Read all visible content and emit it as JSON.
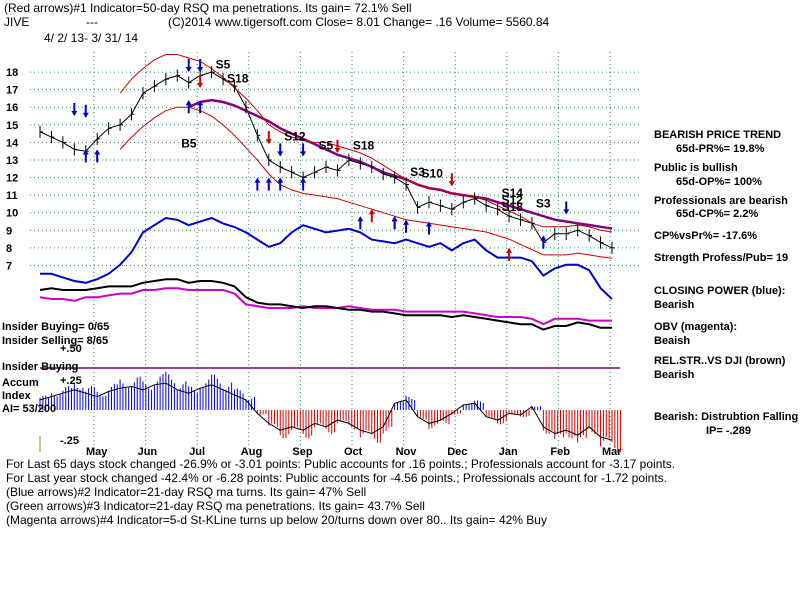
{
  "header": {
    "line1": "(Red arrows)#1 Indicator=50-day RSQ ma penetrations. Its gain= 72.1% Sell",
    "ticker": "JIVE",
    "dashes": "---",
    "line2": "(C)2014 www.tigersoft.com     Close=  8.01  Change= .16 Volume= 5560.84",
    "date_range": "4/ 2/ 13-  3/ 31/ 14"
  },
  "chart_data": {
    "type": "line",
    "price_axis": {
      "ticks": [
        "18",
        "17",
        "16",
        "15",
        "14",
        "13",
        "12",
        "11",
        "10",
        "9",
        "8",
        "7"
      ],
      "range": [
        6.4,
        18.8
      ]
    },
    "months": [
      "May",
      "Jun",
      "Jul",
      "Aug",
      "Sep",
      "Oct",
      "Nov",
      "Dec",
      "Jan",
      "Feb",
      "Mar"
    ],
    "series": [
      {
        "key": "price",
        "color": "#000000",
        "values": [
          14.6,
          14.3,
          14.0,
          13.6,
          13.5,
          14.2,
          14.8,
          15.0,
          15.6,
          16.8,
          17.2,
          17.6,
          17.8,
          17.4,
          17.8,
          18.0,
          17.6,
          17.2,
          16.0,
          14.4,
          13.0,
          12.6,
          12.3,
          12.0,
          12.3,
          12.6,
          12.4,
          13.0,
          12.8,
          12.6,
          12.2,
          12.0,
          11.6,
          10.3,
          10.6,
          10.4,
          10.2,
          10.6,
          10.8,
          10.4,
          10.2,
          9.8,
          9.6,
          9.4,
          8.3,
          8.8,
          8.8,
          9.0,
          8.7,
          8.3,
          8.0
        ]
      },
      {
        "key": "ma_50",
        "color": "#800080",
        "values": [
          null,
          null,
          null,
          null,
          null,
          null,
          null,
          null,
          null,
          null,
          null,
          null,
          null,
          16.0,
          16.3,
          16.4,
          16.3,
          16.1,
          15.8,
          15.5,
          15.2,
          14.8,
          14.5,
          14.2,
          13.9,
          13.6,
          13.3,
          13.1,
          12.9,
          12.6,
          12.3,
          12.1,
          11.9,
          11.6,
          11.4,
          11.3,
          11.1,
          11.0,
          10.9,
          10.8,
          10.6,
          10.4,
          10.2,
          10.0,
          9.8,
          9.6,
          9.5,
          9.4,
          9.3,
          9.2,
          9.1
        ]
      },
      {
        "key": "band_upper",
        "color": "#cc0000",
        "values": [
          null,
          null,
          null,
          null,
          null,
          null,
          null,
          16.8,
          17.6,
          18.2,
          18.7,
          19.0,
          19.0,
          18.8,
          18.6,
          18.2,
          17.7,
          17.1,
          16.5,
          15.8,
          15.0,
          14.6,
          14.3,
          14.1,
          14.0,
          14.0,
          13.8,
          13.6,
          13.4,
          13.1,
          12.7,
          12.3,
          11.9,
          11.6,
          11.4,
          11.3,
          11.1,
          11.0,
          10.9,
          10.7,
          10.4,
          10.1,
          9.8,
          9.4,
          9.2,
          9.2,
          9.2,
          9.3,
          9.2,
          9.0,
          8.9
        ]
      },
      {
        "key": "band_lower",
        "color": "#cc0000",
        "values": [
          null,
          null,
          null,
          null,
          null,
          null,
          null,
          13.6,
          14.3,
          14.9,
          15.4,
          15.8,
          16.0,
          16.0,
          15.8,
          15.5,
          15.0,
          14.4,
          13.7,
          13.0,
          12.2,
          11.6,
          11.3,
          11.1,
          11.0,
          10.9,
          10.8,
          10.6,
          10.4,
          10.2,
          10.0,
          9.8,
          9.6,
          9.5,
          9.4,
          9.3,
          9.2,
          9.1,
          9.0,
          8.9,
          8.7,
          8.5,
          8.2,
          7.9,
          7.6,
          7.6,
          7.6,
          7.7,
          7.6,
          7.5,
          7.4
        ]
      },
      {
        "key": "closing_power",
        "color": "#0000cc",
        "values": [
          5.9,
          5.9,
          5.7,
          5.5,
          5.4,
          5.6,
          5.9,
          6.4,
          7.1,
          8.2,
          8.6,
          9.0,
          8.9,
          8.6,
          8.8,
          9.0,
          8.7,
          8.5,
          8.2,
          7.8,
          7.4,
          7.6,
          8.2,
          8.6,
          8.4,
          8.2,
          8.3,
          8.4,
          8.2,
          7.8,
          7.7,
          7.6,
          7.8,
          7.6,
          7.4,
          7.6,
          7.2,
          7.6,
          7.8,
          7.2,
          6.8,
          6.8,
          6.8,
          6.6,
          5.8,
          6.2,
          6.4,
          6.4,
          6.1,
          5.1,
          4.5
        ]
      },
      {
        "key": "obv",
        "color": "#cc00cc",
        "values": [
          4.6,
          4.5,
          4.5,
          4.4,
          4.6,
          4.6,
          4.7,
          4.8,
          4.8,
          5.0,
          5.0,
          5.1,
          5.1,
          5.0,
          5.0,
          5.0,
          5.0,
          4.8,
          4.2,
          4.1,
          4.0,
          4.0,
          4.0,
          4.1,
          4.0,
          4.0,
          4.0,
          4.1,
          4.0,
          3.9,
          3.9,
          3.9,
          3.8,
          3.8,
          3.8,
          3.8,
          3.8,
          3.8,
          3.7,
          3.6,
          3.5,
          3.5,
          3.5,
          3.4,
          3.1,
          3.4,
          3.4,
          3.4,
          3.3,
          3.3,
          3.3
        ]
      },
      {
        "key": "rel_str_dji",
        "color": "#000000",
        "values": [
          5.0,
          5.1,
          5.0,
          5.0,
          5.0,
          5.1,
          5.2,
          5.2,
          5.2,
          5.4,
          5.5,
          5.6,
          5.6,
          5.4,
          5.5,
          5.5,
          5.4,
          5.2,
          4.6,
          4.3,
          4.2,
          4.2,
          4.1,
          4.0,
          4.1,
          4.1,
          4.0,
          3.9,
          3.9,
          3.8,
          3.8,
          3.7,
          3.6,
          3.6,
          3.6,
          3.6,
          3.5,
          3.6,
          3.5,
          3.4,
          3.3,
          3.2,
          3.1,
          3.1,
          2.8,
          3.0,
          3.0,
          3.2,
          3.1,
          2.9,
          2.9
        ]
      }
    ],
    "accum": {
      "label_pos": "+.50",
      "label_mid": "+.25",
      "label_neg": "-.25",
      "values": [
        0.06,
        0.08,
        0.1,
        0.12,
        0.1,
        0.08,
        0.11,
        0.13,
        0.14,
        0.12,
        0.15,
        0.16,
        0.12,
        0.1,
        0.13,
        0.15,
        0.12,
        0.09,
        0.06,
        -0.02,
        -0.08,
        -0.12,
        -0.1,
        -0.12,
        -0.08,
        -0.1,
        -0.06,
        -0.08,
        -0.12,
        -0.14,
        -0.1,
        0.04,
        0.06,
        -0.04,
        -0.08,
        -0.06,
        -0.02,
        0.03,
        0.04,
        -0.04,
        -0.06,
        -0.02,
        -0.03,
        0.02,
        -0.1,
        -0.14,
        -0.12,
        -0.15,
        -0.1,
        -0.16,
        -0.18
      ],
      "pos_color": "#0000cc",
      "neg_color": "#cc0000"
    },
    "signals": [
      {
        "text": "S5",
        "i": 15,
        "v": 18.2
      },
      {
        "text": "S18",
        "i": 16,
        "v": 17.4
      },
      {
        "text": "B5",
        "i": 12,
        "v": 13.7
      },
      {
        "text": "S12",
        "i": 21,
        "v": 14.1
      },
      {
        "text": "S5",
        "i": 24,
        "v": 13.6
      },
      {
        "text": "S18",
        "i": 27,
        "v": 13.6
      },
      {
        "text": "S3",
        "i": 32,
        "v": 12.1
      },
      {
        "text": "S10",
        "i": 33,
        "v": 12.0
      },
      {
        "text": "S14",
        "i": 40,
        "v": 10.9
      },
      {
        "text": "S12",
        "i": 40,
        "v": 10.5
      },
      {
        "text": "S18",
        "i": 40,
        "v": 10.1
      },
      {
        "text": "S3",
        "i": 43,
        "v": 10.3
      }
    ],
    "red_arrows": [
      {
        "i": 14,
        "dir": "down",
        "v": 17.5
      },
      {
        "i": 20,
        "dir": "down",
        "v": 14.3
      },
      {
        "i": 26,
        "dir": "down",
        "v": 13.8
      },
      {
        "i": 36,
        "dir": "down",
        "v": 11.9
      },
      {
        "i": 29,
        "dir": "up",
        "v": 9.8
      },
      {
        "i": 31,
        "dir": "up",
        "v": 9.4
      },
      {
        "i": 41,
        "dir": "up",
        "v": 7.6
      }
    ],
    "blue_arrows": [
      {
        "i": 3,
        "dir": "down",
        "v": 15.9
      },
      {
        "i": 4,
        "dir": "down",
        "v": 15.8
      },
      {
        "i": 13,
        "dir": "down",
        "v": 18.4
      },
      {
        "i": 14,
        "dir": "down",
        "v": 18.4
      },
      {
        "i": 21,
        "dir": "down",
        "v": 13.6
      },
      {
        "i": 23,
        "dir": "down",
        "v": 13.6
      },
      {
        "i": 46,
        "dir": "down",
        "v": 10.3
      },
      {
        "i": 44,
        "dir": "up",
        "v": 8.3
      }
    ],
    "green_arrows": [
      {
        "i": 4,
        "dir": "up",
        "v": 13.2
      },
      {
        "i": 5,
        "dir": "up",
        "v": 13.2
      },
      {
        "i": 13,
        "dir": "up",
        "v": 16.0
      },
      {
        "i": 14,
        "dir": "up",
        "v": 16.0
      },
      {
        "i": 19,
        "dir": "up",
        "v": 11.6
      },
      {
        "i": 20,
        "dir": "up",
        "v": 11.6
      },
      {
        "i": 21,
        "dir": "up",
        "v": 11.6
      },
      {
        "i": 23,
        "dir": "up",
        "v": 11.6
      },
      {
        "i": 28,
        "dir": "up",
        "v": 9.4
      },
      {
        "i": 31,
        "dir": "up",
        "v": 9.4
      },
      {
        "i": 32,
        "dir": "up",
        "v": 9.2
      },
      {
        "i": 34,
        "dir": "up",
        "v": 9.1
      }
    ]
  },
  "left_labels": {
    "insider_buying": "Insider Buying= 0/65",
    "insider_selling": "Insider Selling= 8/65",
    "insider_buying_plain": "Insider Buying",
    "accum_index": "Accum\nIndex",
    "ai": "AI= 53/200"
  },
  "right_panel": {
    "trend_title": "BEARISH PRICE TREND",
    "pr": "65d-PR%= 19.8%",
    "public": "Public is bullish",
    "op": "65d-OP%= 100%",
    "pros": "Professionals are bearish",
    "cp": "65d-CP%= 2.2%",
    "cp_vs_pr": "CP%vsPr%= -17.6%",
    "strength": "Strength Profess/Pub= 19",
    "closing_power": "CLOSING POWER (blue):",
    "closing_power_val": "Bearish",
    "obv": "OBV (magenta):",
    "obv_val": "Beaish",
    "relstr": "REL.STR..VS DJI (brown)",
    "relstr_val": "Bearish",
    "dist": "Bearish:  Distrubtion Falling",
    "ip": "IP= -.289"
  },
  "footer": {
    "line1": "For Last 65 days stock changed -26.9% or -3.01 points:  Public accounts for  .16 points.;  Professionals account for -3.17 points.",
    "line2": "For Last year stock changed -42.4% or -6.28 points:  Public accounts for -4.56 points.;  Professionals account for -1.72 points.",
    "line3": "(Blue arrows)#2 Indicator=21-day RSQ ma turns. Its gain= 47% Sell",
    "line4": "(Green arrows)#3 Indicator=21-day RSQ ma penetrations. Its gain= 43.7% Sell",
    "line5": "(Magenta arrows)#4 Indicator=5-d St-KLine turns up below 20/turns down over 80.. Its gain= 42% Buy"
  }
}
